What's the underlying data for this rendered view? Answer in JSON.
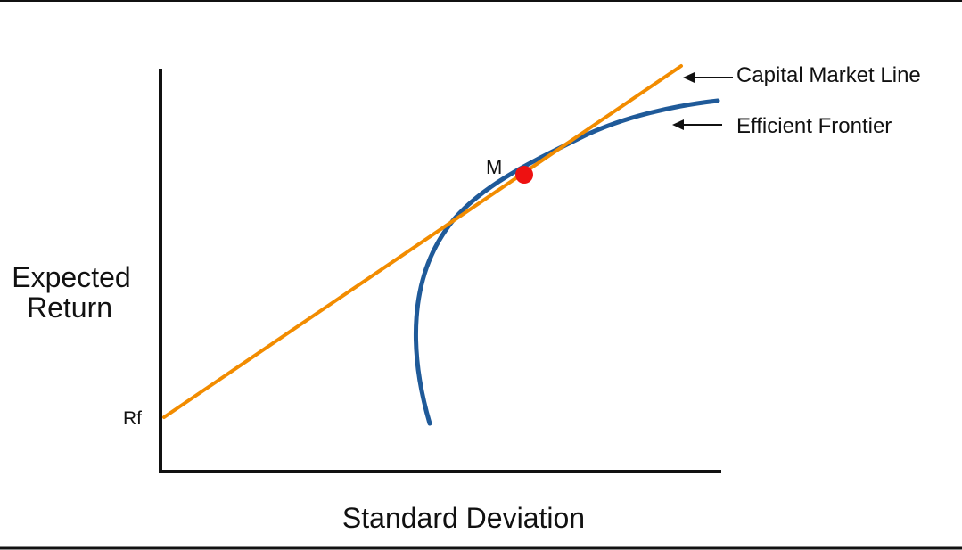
{
  "diagram": {
    "y_axis_label_line1": "Expected",
    "y_axis_label_line2": "Return",
    "x_axis_label": "Standard Deviation",
    "rf_label": "Rf",
    "market_point_label": "M",
    "cml_label": "Capital Market Line",
    "frontier_label": "Efficient Frontier"
  },
  "colors": {
    "cml": "#F28C00",
    "frontier": "#1F5A99",
    "market_point": "#EE1111",
    "axis": "#111111",
    "frame": "#111111",
    "text": "#111111"
  }
}
